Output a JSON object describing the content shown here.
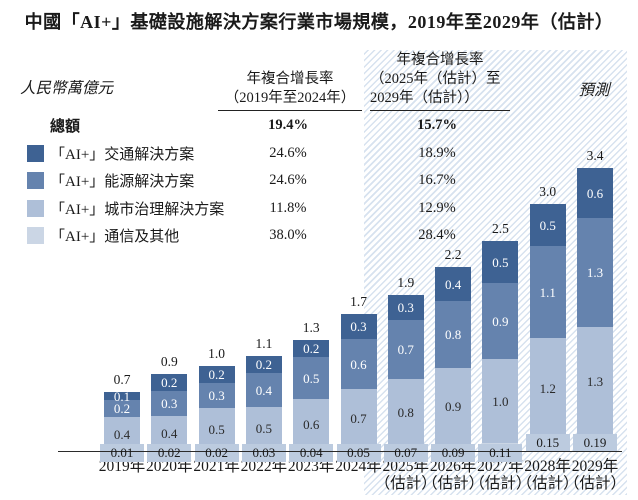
{
  "title": "中國「AI+」基礎設施解決方案行業市場規模，2019年至2029年（估計）",
  "unit_label": "人民幣萬億元",
  "forecast_label": "預測",
  "cagr_columns": [
    {
      "lines": [
        "年複合增長率",
        "（2019年至2024年）"
      ]
    },
    {
      "lines": [
        "年複合增長率",
        "（2025年（估計）至",
        "2029年（估計））"
      ]
    }
  ],
  "legend": {
    "total": {
      "label": "總額",
      "cagr1": "19.4%",
      "cagr2": "15.7%"
    },
    "items": [
      {
        "label": "「AI+」交通解決方案",
        "color": "#3e6293",
        "cagr1": "24.6%",
        "cagr2": "18.9%"
      },
      {
        "label": "「AI+」能源解決方案",
        "color": "#6583ae",
        "cagr1": "24.6%",
        "cagr2": "16.7%"
      },
      {
        "label": "「AI+」城市治理解決方案",
        "color": "#aebfd8",
        "cagr1": "11.8%",
        "cagr2": "12.9%"
      },
      {
        "label": "「AI+」通信及其他",
        "color": "#cbd6e5",
        "cagr1": "38.0%",
        "cagr2": "28.4%"
      }
    ]
  },
  "chart_data": {
    "type": "bar",
    "subtype": "stacked",
    "unit": "人民幣萬億元",
    "categories": [
      "2019年",
      "2020年",
      "2021年",
      "2022年",
      "2023年",
      "2024年",
      "2025年（估計）",
      "2026年（估計）",
      "2027年（估計）",
      "2028年（估計）",
      "2029年（估計）"
    ],
    "x_labels": [
      [
        "2019年"
      ],
      [
        "2020年"
      ],
      [
        "2021年"
      ],
      [
        "2022年"
      ],
      [
        "2023年"
      ],
      [
        "2024年"
      ],
      [
        "2025年",
        "（估計）"
      ],
      [
        "2026年",
        "（估計）"
      ],
      [
        "2027年",
        "（估計）"
      ],
      [
        "2028年",
        "（估計）"
      ],
      [
        "2029年",
        "（估計）"
      ]
    ],
    "totals": [
      "0.7",
      "0.9",
      "1.0",
      "1.1",
      "1.3",
      "1.7",
      "1.9",
      "2.2",
      "2.5",
      "3.0",
      "3.4"
    ],
    "series": [
      {
        "key": "comm-other",
        "name": "「AI+」通信及其他",
        "color": "#cbd6e5",
        "label_style": "chip",
        "values": [
          "0.01",
          "0.02",
          "0.02",
          "0.03",
          "0.04",
          "0.05",
          "0.07",
          "0.09",
          "0.11",
          "0.15",
          "0.19"
        ]
      },
      {
        "key": "city-governance",
        "name": "「AI+」城市治理解決方案",
        "color": "#aebfd8",
        "text_color": "#2a2a2a",
        "values": [
          "0.4",
          "0.4",
          "0.5",
          "0.5",
          "0.6",
          "0.7",
          "0.8",
          "0.9",
          "1.0",
          "1.2",
          "1.3"
        ]
      },
      {
        "key": "energy",
        "name": "「AI+」能源解決方案",
        "color": "#6583ae",
        "text_color": "#ffffff",
        "values": [
          "0.2",
          "0.3",
          "0.3",
          "0.4",
          "0.5",
          "0.6",
          "0.7",
          "0.8",
          "0.9",
          "1.1",
          "1.3"
        ]
      },
      {
        "key": "transport",
        "name": "「AI+」交通解決方案",
        "color": "#3e6293",
        "text_color": "#ffffff",
        "values": [
          "0.1",
          "0.2",
          "0.2",
          "0.2",
          "0.2",
          "0.3",
          "0.3",
          "0.4",
          "0.5",
          "0.5",
          "0.6"
        ]
      }
    ],
    "forecast_start_index": 6,
    "cagr_2019_2024": {
      "total": "19.4%",
      "transport": "24.6%",
      "energy": "24.6%",
      "city": "11.8%",
      "comm": "38.0%"
    },
    "cagr_2025_2029": {
      "total": "15.7%",
      "transport": "18.9%",
      "energy": "16.7%",
      "city": "12.9%",
      "comm": "28.4%"
    },
    "grid": false,
    "legend_position": "upper-left"
  }
}
